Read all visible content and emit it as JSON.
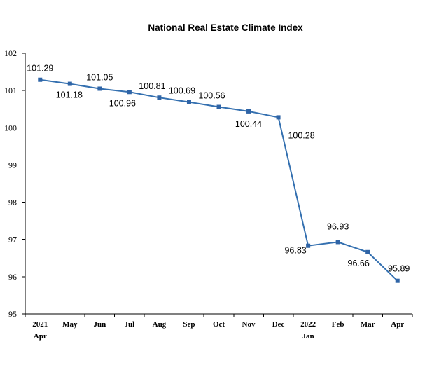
{
  "chart_data": {
    "type": "line",
    "title": "National Real Estate  Climate Index",
    "xlabel": "",
    "ylabel": "",
    "ylim": [
      95,
      102
    ],
    "yticks": [
      "95",
      "96",
      "97",
      "98",
      "99",
      "100",
      "101",
      "102"
    ],
    "grid": false,
    "legend": "none",
    "series_color": "#3470b0",
    "categories": [
      {
        "line1": "2021",
        "line2": "Apr"
      },
      {
        "line1": "May",
        "line2": ""
      },
      {
        "line1": "Jun",
        "line2": ""
      },
      {
        "line1": "Jul",
        "line2": ""
      },
      {
        "line1": "Aug",
        "line2": ""
      },
      {
        "line1": "Sep",
        "line2": ""
      },
      {
        "line1": "Oct",
        "line2": ""
      },
      {
        "line1": "Nov",
        "line2": ""
      },
      {
        "line1": "Dec",
        "line2": ""
      },
      {
        "line1": "2022",
        "line2": "Jan"
      },
      {
        "line1": "Feb",
        "line2": ""
      },
      {
        "line1": "Mar",
        "line2": ""
      },
      {
        "line1": "Apr",
        "line2": ""
      }
    ],
    "values": [
      101.29,
      101.18,
      101.05,
      100.96,
      100.81,
      100.69,
      100.56,
      100.44,
      100.28,
      96.83,
      96.93,
      96.66,
      95.89
    ],
    "data_labels": [
      "101.29",
      "101.18",
      "101.05",
      "100.96",
      "100.81",
      "100.69",
      "100.56",
      "100.44",
      "100.28",
      "96.83",
      "96.93",
      "96.66",
      "95.89"
    ]
  }
}
